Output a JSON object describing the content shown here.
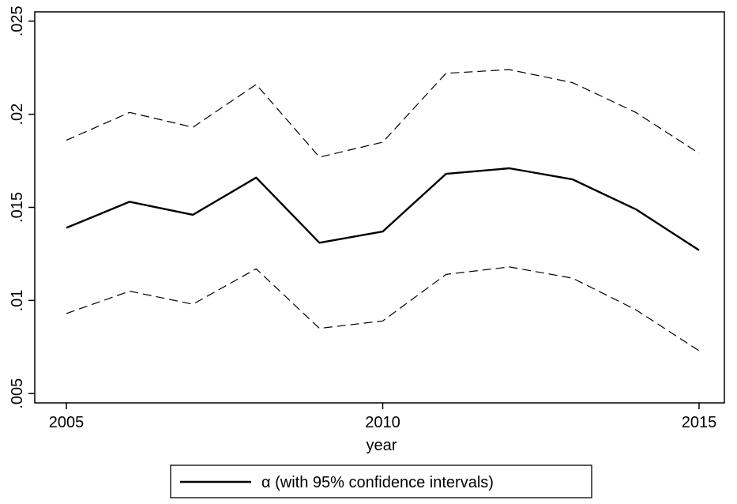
{
  "chart_data": {
    "type": "line",
    "xlabel": "year",
    "ylabel": "",
    "xlim": [
      2004.5,
      2015.4
    ],
    "ylim": [
      0.0045,
      0.0255
    ],
    "x_ticks": [
      {
        "value": 2005,
        "label": "2005"
      },
      {
        "value": 2010,
        "label": "2010"
      },
      {
        "value": 2015,
        "label": "2015"
      }
    ],
    "y_ticks": [
      {
        "value": 0.005,
        "label": ".005"
      },
      {
        "value": 0.01,
        "label": ".01"
      },
      {
        "value": 0.015,
        "label": ".015"
      },
      {
        "value": 0.02,
        "label": ".02"
      },
      {
        "value": 0.025,
        "label": ".025"
      }
    ],
    "grid": false,
    "legend": {
      "position": "bottom",
      "label": "α (with 95% confidence intervals)"
    },
    "x": [
      2005,
      2006,
      2007,
      2008,
      2009,
      2010,
      2011,
      2012,
      2013,
      2014,
      2015
    ],
    "series": [
      {
        "role": "estimate",
        "style": "solid",
        "color": "#000000",
        "values": [
          0.0139,
          0.0153,
          0.0146,
          0.0166,
          0.0131,
          0.0137,
          0.0168,
          0.0171,
          0.0165,
          0.0149,
          0.0127
        ]
      },
      {
        "role": "upper",
        "style": "dashed",
        "color": "#000000",
        "values": [
          0.0186,
          0.0201,
          0.0193,
          0.0216,
          0.0177,
          0.0185,
          0.0222,
          0.0224,
          0.0217,
          0.0201,
          0.0179
        ]
      },
      {
        "role": "lower",
        "style": "dashed",
        "color": "#000000",
        "values": [
          0.0093,
          0.0105,
          0.0098,
          0.0117,
          0.0085,
          0.0089,
          0.0114,
          0.0118,
          0.0112,
          0.0095,
          0.0073
        ]
      }
    ]
  }
}
